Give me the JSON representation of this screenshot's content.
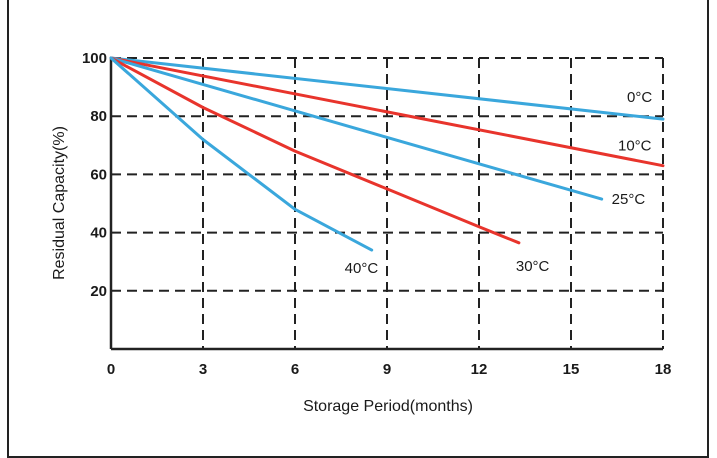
{
  "chart_data": {
    "type": "line",
    "title": "",
    "xlabel": "Storage Period(months)",
    "ylabel": "Residual Capacity(%)",
    "xlim": [
      0,
      18
    ],
    "ylim": [
      0,
      100
    ],
    "xticks": [
      "0",
      "3",
      "6",
      "9",
      "12",
      "15",
      "18"
    ],
    "yticks": [
      "20",
      "40",
      "60",
      "80",
      "100"
    ],
    "grid": true,
    "grid_style": "dashed",
    "legend": "none (series labelled at line ends)",
    "series": [
      {
        "name": "0°C",
        "color": "#3aa7dc",
        "x": [
          0,
          18
        ],
        "y": [
          100,
          79
        ]
      },
      {
        "name": "10°C",
        "color": "#e8342c",
        "x": [
          0,
          18
        ],
        "y": [
          100,
          63
        ]
      },
      {
        "name": "25°C",
        "color": "#3aa7dc",
        "x": [
          0,
          16
        ],
        "y": [
          100,
          51.5
        ]
      },
      {
        "name": "30°C",
        "color": "#e8342c",
        "x": [
          0,
          3,
          6,
          9,
          12,
          13.3
        ],
        "y": [
          100,
          83,
          68,
          55,
          42,
          36.5
        ]
      },
      {
        "name": "40°C",
        "color": "#3aa7dc",
        "x": [
          0,
          3,
          6,
          8.5
        ],
        "y": [
          100,
          72,
          48,
          34
        ]
      }
    ]
  }
}
